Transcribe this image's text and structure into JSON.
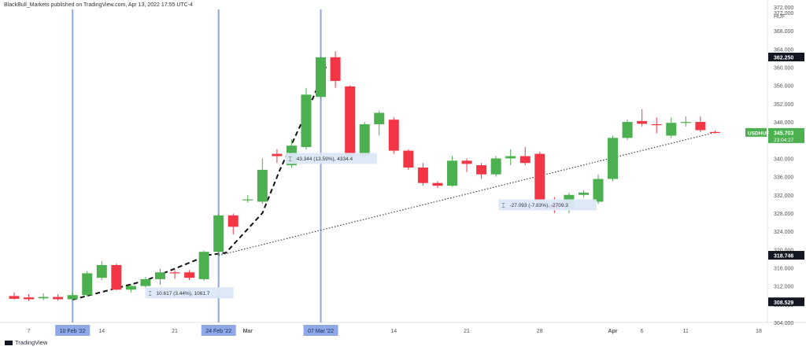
{
  "header": {
    "publisher": "BlackBull_Markets published on TradingView.com, Apr 13, 2022 17:55 UTC-4"
  },
  "brand": {
    "label": "TradingView",
    "icon": "tradingview-logo-icon"
  },
  "chart_data": {
    "type": "candlestick",
    "symbol": "USDHUF",
    "currency": "HUF",
    "y_ticks": [
      304,
      308,
      312,
      316,
      320,
      324,
      328,
      332,
      336,
      340,
      344,
      348,
      352,
      356,
      360,
      364,
      368,
      372
    ],
    "ylim": [
      304,
      372
    ],
    "x_ticks": [
      {
        "label": "7",
        "index": 1
      },
      {
        "label": "14",
        "index": 6
      },
      {
        "label": "21",
        "index": 11
      },
      {
        "label": "Mar",
        "index": 16
      },
      {
        "label": "14",
        "index": 26
      },
      {
        "label": "21",
        "index": 31
      },
      {
        "label": "28",
        "index": 36
      },
      {
        "label": "Apr",
        "index": 41
      },
      {
        "label": "6",
        "index": 43
      },
      {
        "label": "11",
        "index": 46
      },
      {
        "label": "18",
        "index": 51
      }
    ],
    "date_markers": [
      {
        "label": "10 Feb '22",
        "index": 4
      },
      {
        "label": "24 Feb '22",
        "index": 14
      },
      {
        "label": "07 Mar '22",
        "index": 21
      }
    ],
    "candles": [
      {
        "o": 309.8,
        "h": 310.6,
        "l": 309.0,
        "c": 309.2
      },
      {
        "o": 309.5,
        "h": 310.2,
        "l": 308.7,
        "c": 309.1
      },
      {
        "o": 309.3,
        "h": 310.4,
        "l": 308.9,
        "c": 309.6
      },
      {
        "o": 309.6,
        "h": 310.2,
        "l": 308.8,
        "c": 309.1
      },
      {
        "o": 309.1,
        "h": 310.6,
        "l": 308.9,
        "c": 310.0
      },
      {
        "o": 310.0,
        "h": 315.3,
        "l": 309.7,
        "c": 314.8
      },
      {
        "o": 313.8,
        "h": 317.5,
        "l": 313.3,
        "c": 316.6
      },
      {
        "o": 316.6,
        "h": 316.9,
        "l": 311.1,
        "c": 311.2
      },
      {
        "o": 311.2,
        "h": 312.4,
        "l": 310.6,
        "c": 312.0
      },
      {
        "o": 312.0,
        "h": 314.0,
        "l": 311.4,
        "c": 313.5
      },
      {
        "o": 313.5,
        "h": 315.8,
        "l": 312.3,
        "c": 315.0
      },
      {
        "o": 315.0,
        "h": 315.5,
        "l": 313.6,
        "c": 314.9
      },
      {
        "o": 315.0,
        "h": 315.5,
        "l": 313.3,
        "c": 313.8
      },
      {
        "o": 313.5,
        "h": 319.8,
        "l": 313.2,
        "c": 319.5
      },
      {
        "o": 319.5,
        "h": 327.8,
        "l": 318.5,
        "c": 327.5
      },
      {
        "o": 327.5,
        "h": 327.9,
        "l": 323.3,
        "c": 325.0
      },
      {
        "o": 330.8,
        "h": 332.0,
        "l": 330.3,
        "c": 331.0
      },
      {
        "o": 330.5,
        "h": 340.0,
        "l": 330.0,
        "c": 337.5
      },
      {
        "o": 341.0,
        "h": 342.0,
        "l": 339.0,
        "c": 340.5
      },
      {
        "o": 338.5,
        "h": 344.2,
        "l": 338.0,
        "c": 342.8
      },
      {
        "o": 342.5,
        "h": 355.5,
        "l": 342.0,
        "c": 354.0
      },
      {
        "o": 353.5,
        "h": 362.4,
        "l": 353.0,
        "c": 362.2
      },
      {
        "o": 362.2,
        "h": 363.5,
        "l": 355.5,
        "c": 357.0
      },
      {
        "o": 355.8,
        "h": 356.0,
        "l": 340.0,
        "c": 340.5
      },
      {
        "o": 340.5,
        "h": 348.0,
        "l": 340.0,
        "c": 347.5
      },
      {
        "o": 347.5,
        "h": 350.5,
        "l": 345.0,
        "c": 350.0
      },
      {
        "o": 348.5,
        "h": 349.0,
        "l": 341.0,
        "c": 341.7
      },
      {
        "o": 341.7,
        "h": 342.0,
        "l": 337.5,
        "c": 338.0
      },
      {
        "o": 338.0,
        "h": 339.0,
        "l": 334.0,
        "c": 334.6
      },
      {
        "o": 334.6,
        "h": 335.0,
        "l": 333.5,
        "c": 334.0
      },
      {
        "o": 334.0,
        "h": 340.5,
        "l": 333.8,
        "c": 339.5
      },
      {
        "o": 339.5,
        "h": 340.0,
        "l": 337.0,
        "c": 338.8
      },
      {
        "o": 338.5,
        "h": 339.0,
        "l": 335.5,
        "c": 336.5
      },
      {
        "o": 336.5,
        "h": 340.5,
        "l": 336.0,
        "c": 340.0
      },
      {
        "o": 340.0,
        "h": 342.0,
        "l": 338.5,
        "c": 340.5
      },
      {
        "o": 340.5,
        "h": 342.5,
        "l": 338.5,
        "c": 339.0
      },
      {
        "o": 341.0,
        "h": 341.5,
        "l": 330.5,
        "c": 331.0
      },
      {
        "o": 330.0,
        "h": 331.5,
        "l": 328.0,
        "c": 329.0
      },
      {
        "o": 329.0,
        "h": 332.5,
        "l": 328.0,
        "c": 332.0
      },
      {
        "o": 332.0,
        "h": 333.0,
        "l": 331.5,
        "c": 332.5
      },
      {
        "o": 330.5,
        "h": 336.5,
        "l": 330.0,
        "c": 335.5
      },
      {
        "o": 335.5,
        "h": 345.0,
        "l": 335.0,
        "c": 344.5
      },
      {
        "o": 344.5,
        "h": 348.5,
        "l": 344.0,
        "c": 348.0
      },
      {
        "o": 348.2,
        "h": 350.8,
        "l": 347.0,
        "c": 347.6
      },
      {
        "o": 347.5,
        "h": 349.0,
        "l": 345.5,
        "c": 347.3
      },
      {
        "o": 345.0,
        "h": 349.0,
        "l": 344.5,
        "c": 347.8
      },
      {
        "o": 347.8,
        "h": 349.2,
        "l": 347.0,
        "c": 348.0
      },
      {
        "o": 348.0,
        "h": 349.2,
        "l": 345.8,
        "c": 346.2
      },
      {
        "o": 345.8,
        "h": 346.1,
        "l": 345.5,
        "c": 345.7
      }
    ],
    "price_labels": [
      {
        "label": "362.250",
        "value": 362.25,
        "style": "dark"
      },
      {
        "label": "345.703",
        "value": 345.703,
        "style": "green",
        "sub": "23:04:27"
      },
      {
        "label": "318.746",
        "value": 318.746,
        "style": "dark"
      },
      {
        "label": "308.529",
        "value": 308.529,
        "style": "dark"
      }
    ],
    "symbol_tag": {
      "label": "USDHUF",
      "value": 345.703
    },
    "top_label": "372.000",
    "trendline": {
      "from": {
        "index": 14,
        "value": 318.7
      },
      "to": {
        "index": 48,
        "value": 345.7
      }
    },
    "dashed_path": [
      {
        "index": 4,
        "value": 309.0
      },
      {
        "index": 9,
        "value": 313.2
      },
      {
        "index": 13.3,
        "value": 318.8
      },
      {
        "index": 14.5,
        "value": 319.3
      },
      {
        "index": 17,
        "value": 328.0
      },
      {
        "index": 18.2,
        "value": 337.5
      },
      {
        "index": 20.5,
        "value": 353.5
      },
      {
        "index": 21.4,
        "value": 360.5
      }
    ],
    "measurements": [
      {
        "label": "10.617 (3.44%), 1061.7",
        "index": 9.3,
        "value": 310.5,
        "icon": "range-icon"
      },
      {
        "label": "43.344 (13.59%), 4334.4",
        "index": 18.9,
        "value": 340.0,
        "icon": "range-icon"
      },
      {
        "label": "-27.093 (-7.83%), -2709.3",
        "index": 33.5,
        "value": 329.8,
        "icon": "range-icon"
      }
    ],
    "colors": {
      "up": "#4caf50",
      "down": "#f23645",
      "marker": "#8fa9e6",
      "marker_label_bg": "#8fa9e6"
    }
  }
}
